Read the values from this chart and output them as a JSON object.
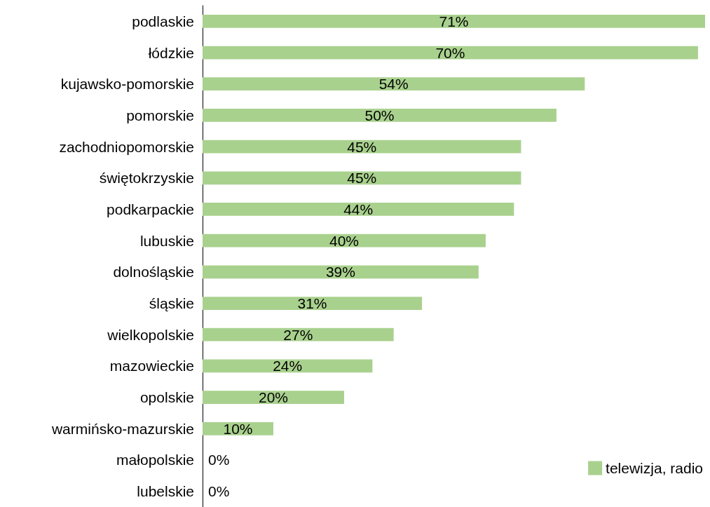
{
  "chart_data": {
    "type": "bar",
    "orientation": "horizontal",
    "categories": [
      "podlaskie",
      "łódzkie",
      "kujawsko-pomorskie",
      "pomorskie",
      "zachodniopomorskie",
      "świętokrzyskie",
      "podkarpackie",
      "lubuskie",
      "dolnośląskie",
      "śląskie",
      "wielkopolskie",
      "mazowieckie",
      "opolskie",
      "warmińsko-mazurskie",
      "małopolskie",
      "lubelskie"
    ],
    "series": [
      {
        "name": "telewizja, radio",
        "color": "#a9d18e",
        "values": [
          71,
          70,
          54,
          50,
          45,
          45,
          44,
          40,
          39,
          31,
          27,
          24,
          20,
          10,
          0,
          0
        ],
        "value_labels": [
          "71%",
          "70%",
          "54%",
          "50%",
          "45%",
          "45%",
          "44%",
          "40%",
          "39%",
          "31%",
          "27%",
          "24%",
          "20%",
          "10%",
          "0%",
          "0%"
        ]
      }
    ],
    "legend": "bottom right"
  }
}
